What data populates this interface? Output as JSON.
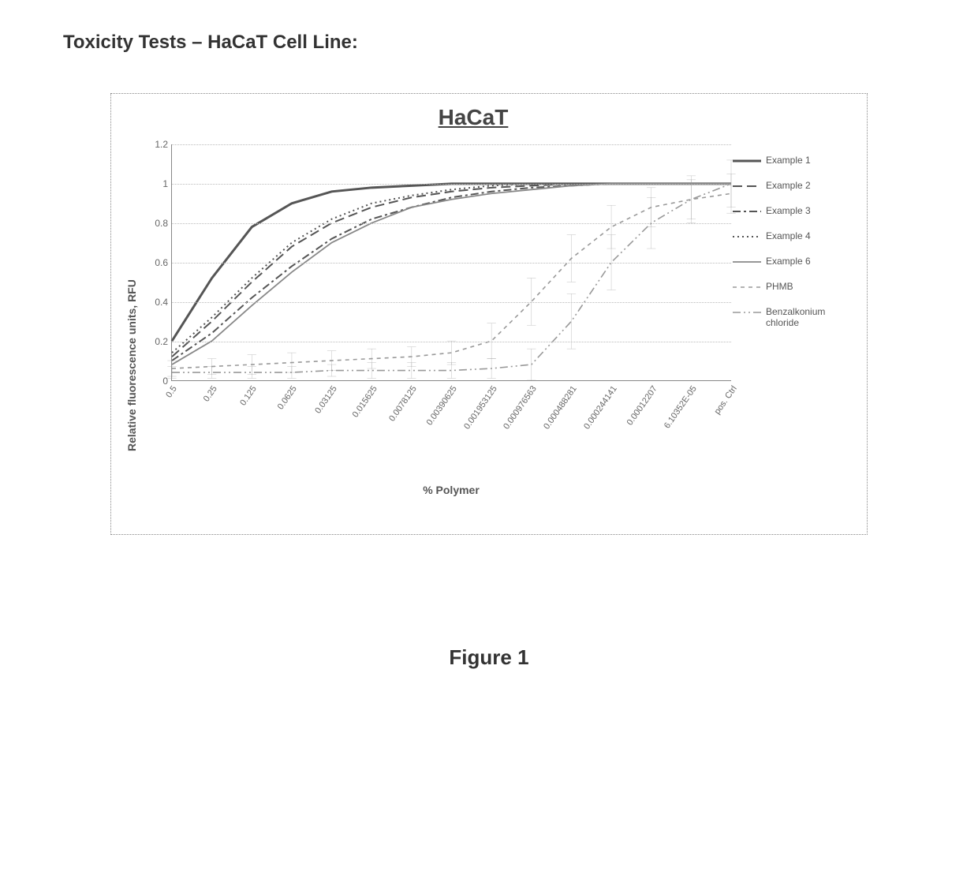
{
  "page_title": "Toxicity Tests – HaCaT Cell Line:",
  "figure_caption": "Figure 1",
  "chart": {
    "type": "line",
    "title": "HaCaT",
    "title_fontsize": 28,
    "ylabel": "Relative fluorescence units, RFU",
    "xlabel": "% Polymer",
    "label_fontsize": 14,
    "tick_fontsize": 12,
    "xtick_fontsize": 11,
    "ylim": [
      0,
      1.2
    ],
    "yticks": [
      0,
      0.2,
      0.4,
      0.6,
      0.8,
      1,
      1.2
    ],
    "grid_color": "#bbbbbb",
    "axis_color": "#888888",
    "background_color": "#ffffff",
    "border_color": "#888888",
    "x_categories": [
      "0.5",
      "0.25",
      "0.125",
      "0.0625",
      "0.03125",
      "0.015625",
      "0.0078125",
      "0.00390625",
      "0.001953125",
      "0.000976563",
      "0.000488281",
      "0.000244141",
      "0.00012207",
      "6.10352E-05",
      "pos. Ctrl"
    ],
    "series": [
      {
        "name": "Example 1",
        "color": "#555555",
        "line_width": 3.0,
        "dash": "solid",
        "has_error": false,
        "y": [
          0.2,
          0.52,
          0.78,
          0.9,
          0.96,
          0.98,
          0.99,
          1.0,
          1.0,
          1.0,
          1.0,
          1.0,
          1.0,
          1.0,
          1.0
        ]
      },
      {
        "name": "Example 2",
        "color": "#555555",
        "line_width": 2.0,
        "dash": "longdash",
        "has_error": false,
        "y": [
          0.12,
          0.3,
          0.5,
          0.68,
          0.8,
          0.88,
          0.93,
          0.96,
          0.98,
          0.99,
          1.0,
          1.0,
          1.0,
          1.0,
          1.0
        ]
      },
      {
        "name": "Example 3",
        "color": "#555555",
        "line_width": 2.0,
        "dash": "dashdot",
        "has_error": false,
        "y": [
          0.1,
          0.24,
          0.42,
          0.58,
          0.72,
          0.82,
          0.88,
          0.93,
          0.96,
          0.98,
          0.99,
          1.0,
          1.0,
          1.0,
          1.0
        ]
      },
      {
        "name": "Example 4",
        "color": "#555555",
        "line_width": 2.0,
        "dash": "dotted",
        "has_error": false,
        "y": [
          0.14,
          0.32,
          0.52,
          0.7,
          0.82,
          0.9,
          0.94,
          0.97,
          0.99,
          1.0,
          1.0,
          1.0,
          1.0,
          1.0,
          1.0
        ]
      },
      {
        "name": "Example 6",
        "color": "#888888",
        "line_width": 1.8,
        "dash": "solid",
        "has_error": false,
        "y": [
          0.08,
          0.2,
          0.38,
          0.55,
          0.7,
          0.8,
          0.88,
          0.92,
          0.95,
          0.97,
          0.99,
          1.0,
          1.0,
          1.0,
          1.0
        ]
      },
      {
        "name": "PHMB",
        "color": "#999999",
        "line_width": 1.6,
        "dash": "shortdash",
        "has_error": true,
        "y": [
          0.06,
          0.07,
          0.08,
          0.09,
          0.1,
          0.11,
          0.12,
          0.14,
          0.2,
          0.4,
          0.62,
          0.78,
          0.88,
          0.92,
          0.95
        ],
        "err": [
          0.04,
          0.04,
          0.05,
          0.05,
          0.05,
          0.05,
          0.05,
          0.06,
          0.09,
          0.12,
          0.12,
          0.11,
          0.1,
          0.1,
          0.1
        ]
      },
      {
        "name": "Benzalkonium chloride",
        "color": "#999999",
        "line_width": 1.6,
        "dash": "dashdotdot",
        "has_error": true,
        "y": [
          0.04,
          0.04,
          0.04,
          0.04,
          0.05,
          0.05,
          0.05,
          0.05,
          0.06,
          0.08,
          0.3,
          0.6,
          0.8,
          0.92,
          1.0
        ],
        "err": [
          0.03,
          0.03,
          0.03,
          0.03,
          0.03,
          0.04,
          0.04,
          0.04,
          0.05,
          0.08,
          0.14,
          0.14,
          0.13,
          0.12,
          0.12
        ]
      }
    ],
    "legend_position": "right",
    "dash_patterns": {
      "solid": "",
      "longdash": "12 6",
      "dashed": "8 5",
      "dashdot": "10 4 3 4",
      "dotted": "2 4",
      "shortdash": "5 5",
      "dashdotdot": "10 4 2 4 2 4"
    }
  }
}
